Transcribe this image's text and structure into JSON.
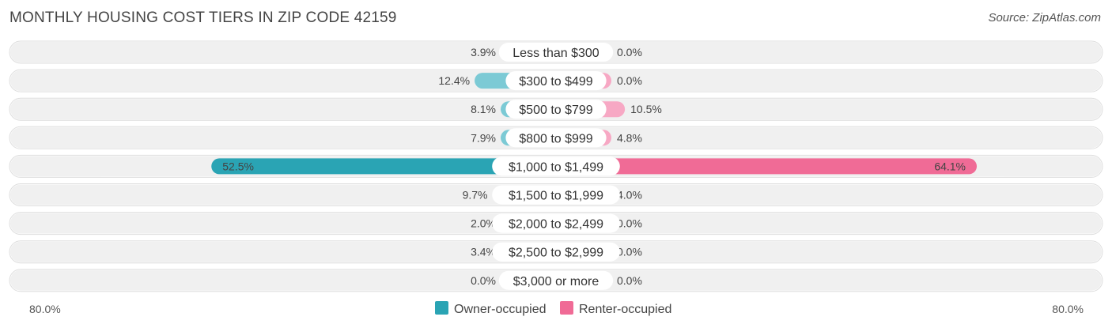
{
  "title": "MONTHLY HOUSING COST TIERS IN ZIP CODE 42159",
  "source": "Source: ZipAtlas.com",
  "colors": {
    "owner": "#7ccad5",
    "owner_strong": "#2aa4b4",
    "renter": "#f7a8c4",
    "renter_strong": "#f06b96",
    "row_bg": "#f0f0f0"
  },
  "chart_data": {
    "type": "bar",
    "orientation": "diverging-horizontal",
    "categories": [
      "Less than $300",
      "$300 to $499",
      "$500 to $799",
      "$800 to $999",
      "$1,000 to $1,499",
      "$1,500 to $1,999",
      "$2,000 to $2,499",
      "$2,500 to $2,999",
      "$3,000 or more"
    ],
    "series": [
      {
        "name": "Owner-occupied",
        "values": [
          3.9,
          12.4,
          8.1,
          7.9,
          52.5,
          9.7,
          2.0,
          3.4,
          0.0
        ],
        "labels": [
          "3.9%",
          "12.4%",
          "8.1%",
          "7.9%",
          "52.5%",
          "9.7%",
          "2.0%",
          "3.4%",
          "0.0%"
        ]
      },
      {
        "name": "Renter-occupied",
        "values": [
          0.0,
          0.0,
          10.5,
          4.8,
          64.1,
          4.0,
          0.0,
          0.0,
          0.0
        ],
        "labels": [
          "0.0%",
          "0.0%",
          "10.5%",
          "4.8%",
          "64.1%",
          "4.0%",
          "0.0%",
          "0.0%",
          "0.0%"
        ]
      }
    ],
    "xlim": [
      -80,
      80
    ],
    "axis_labels": {
      "left": "80.0%",
      "right": "80.0%"
    },
    "legend_position": "bottom-center"
  }
}
